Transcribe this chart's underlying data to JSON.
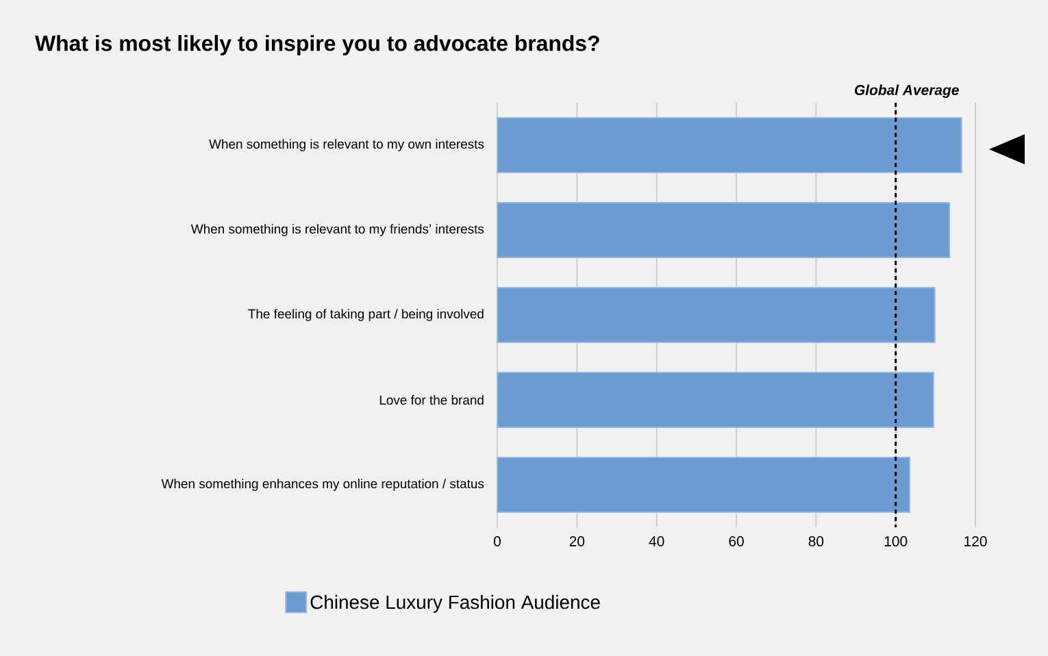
{
  "chart_data": {
    "type": "bar",
    "orientation": "horizontal",
    "title": "What is most likely to inspire you to advocate brands?",
    "categories": [
      "When something is relevant to my own interests",
      "When something is relevant to my friends’ interests",
      "The feeling of taking part / being involved",
      "Love for the brand",
      "When something enhances my online reputation / status"
    ],
    "series": [
      {
        "name": "Chinese Luxury Fashion Audience",
        "color": "#6b9bd1",
        "values": [
          116.5,
          113.5,
          109.8,
          109.5,
          103.5
        ]
      }
    ],
    "xlim": [
      0,
      120
    ],
    "xticks": [
      0,
      20,
      40,
      60,
      80,
      100,
      120
    ],
    "grid": "x",
    "legend": "bottom",
    "ref_lines": [
      {
        "axis": "x",
        "value": 100,
        "label": "Global Average",
        "line_style": "dashed",
        "color": "#000000"
      }
    ]
  }
}
